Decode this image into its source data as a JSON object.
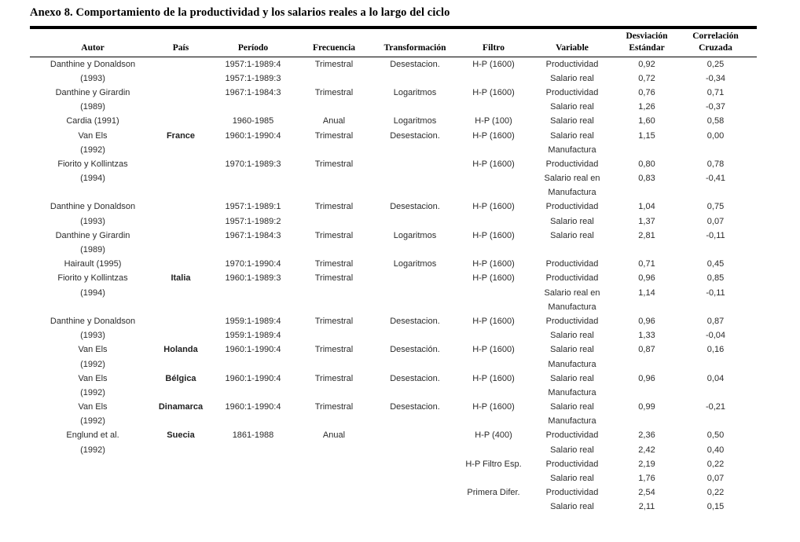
{
  "title": "Anexo 8. Comportamiento de la productividad y los salarios reales a lo largo del ciclo",
  "table": {
    "headers": [
      {
        "line1": "",
        "line2": "Autor"
      },
      {
        "line1": "",
        "line2": "País"
      },
      {
        "line1": "",
        "line2": "Período"
      },
      {
        "line1": "",
        "line2": "Frecuencia"
      },
      {
        "line1": "",
        "line2": "Transformación"
      },
      {
        "line1": "",
        "line2": "Filtro"
      },
      {
        "line1": "",
        "line2": "Variable"
      },
      {
        "line1": "Desviación",
        "line2": "Estándar"
      },
      {
        "line1": "Correlación",
        "line2": "Cruzada"
      }
    ],
    "rows": [
      [
        "Danthine y Donaldson",
        "",
        "1957:1-1989:4",
        "Trimestral",
        "Desestacion.",
        "H-P (1600)",
        "Productividad",
        "0,92",
        "0,25"
      ],
      [
        "(1993)",
        "",
        "1957:1-1989:3",
        "",
        "",
        "",
        "Salario real",
        "0,72",
        "-0,34"
      ],
      [
        "Danthine y Girardin",
        "",
        "1967:1-1984:3",
        "Trimestral",
        "Logaritmos",
        "H-P (1600)",
        "Productividad",
        "0,76",
        "0,71"
      ],
      [
        "(1989)",
        "",
        "",
        "",
        "",
        "",
        "Salario real",
        "1,26",
        "-0,37"
      ],
      [
        "Cardia (1991)",
        "",
        "1960-1985",
        "Anual",
        "Logaritmos",
        "H-P (100)",
        "Salario real",
        "1,60",
        "0,58"
      ],
      [
        "Van Els",
        "France",
        "1960:1-1990:4",
        "Trimestral",
        "Desestacion.",
        "H-P (1600)",
        "Salario real",
        "1,15",
        "0,00"
      ],
      [
        "(1992)",
        "",
        "",
        "",
        "",
        "",
        "Manufactura",
        "",
        ""
      ],
      [
        "Fiorito y Kollintzas",
        "",
        "1970:1-1989:3",
        "Trimestral",
        "",
        "H-P (1600)",
        "Productividad",
        "0,80",
        "0,78"
      ],
      [
        "(1994)",
        "",
        "",
        "",
        "",
        "",
        "Salario real en",
        "0,83",
        "-0,41"
      ],
      [
        "",
        "",
        "",
        "",
        "",
        "",
        "Manufactura",
        "",
        ""
      ],
      [
        "Danthine y Donaldson",
        "",
        "1957:1-1989:1",
        "Trimestral",
        "Desestacion.",
        "H-P (1600)",
        "Productividad",
        "1,04",
        "0,75"
      ],
      [
        "(1993)",
        "",
        "1957:1-1989:2",
        "",
        "",
        "",
        "Salario real",
        "1,37",
        "0,07"
      ],
      [
        "Danthine y Girardin",
        "",
        "1967:1-1984:3",
        "Trimestral",
        "Logaritmos",
        "H-P (1600)",
        "Salario real",
        "2,81",
        "-0,11"
      ],
      [
        "(1989)",
        "",
        "",
        "",
        "",
        "",
        "",
        "",
        ""
      ],
      [
        "Hairault (1995)",
        "",
        "1970:1-1990:4",
        "Trimestral",
        "Logaritmos",
        "H-P (1600)",
        "Productividad",
        "0,71",
        "0,45"
      ],
      [
        "Fiorito y Kollintzas",
        "Italia",
        "1960:1-1989:3",
        "Trimestral",
        "",
        "H-P (1600)",
        "Productividad",
        "0,96",
        "0,85"
      ],
      [
        "(1994)",
        "",
        "",
        "",
        "",
        "",
        "Salario real en",
        "1,14",
        "-0,11"
      ],
      [
        "",
        "",
        "",
        "",
        "",
        "",
        "Manufactura",
        "",
        ""
      ],
      [
        "Danthine y Donaldson",
        "",
        "1959:1-1989:4",
        "Trimestral",
        "Desestacion.",
        "H-P (1600)",
        "Productividad",
        "0,96",
        "0,87"
      ],
      [
        "(1993)",
        "",
        "1959:1-1989:4",
        "",
        "",
        "",
        "Salario real",
        "1,33",
        "-0,04"
      ],
      [
        "Van Els",
        "Holanda",
        "1960:1-1990:4",
        "Trimestral",
        "Desestación.",
        "H-P (1600)",
        "Salario real",
        "0,87",
        "0,16"
      ],
      [
        "(1992)",
        "",
        "",
        "",
        "",
        "",
        "Manufactura",
        "",
        ""
      ],
      [
        "Van Els",
        "Bélgica",
        "1960:1-1990:4",
        "Trimestral",
        "Desestacion.",
        "H-P (1600)",
        "Salario real",
        "0,96",
        "0,04"
      ],
      [
        "(1992)",
        "",
        "",
        "",
        "",
        "",
        "Manufactura",
        "",
        ""
      ],
      [
        "Van Els",
        "Dinamarca",
        "1960:1-1990:4",
        "Trimestral",
        "Desestacion.",
        "H-P (1600)",
        "Salario real",
        "0,99",
        "-0,21"
      ],
      [
        "(1992)",
        "",
        "",
        "",
        "",
        "",
        "Manufactura",
        "",
        ""
      ],
      [
        "Englund et al.",
        "Suecia",
        "1861-1988",
        "Anual",
        "",
        "H-P (400)",
        "Productividad",
        "2,36",
        "0,50"
      ],
      [
        "(1992)",
        "",
        "",
        "",
        "",
        "",
        "Salario real",
        "2,42",
        "0,40"
      ],
      [
        "",
        "",
        "",
        "",
        "",
        "H-P Filtro Esp.",
        "Productividad",
        "2,19",
        "0,22"
      ],
      [
        "",
        "",
        "",
        "",
        "",
        "",
        "Salario real",
        "1,76",
        "0,07"
      ],
      [
        "",
        "",
        "",
        "",
        "",
        "Primera Difer.",
        "Productividad",
        "2,54",
        "0,22"
      ],
      [
        "",
        "",
        "",
        "",
        "",
        "",
        "Salario real",
        "2,11",
        "0,15"
      ]
    ]
  }
}
